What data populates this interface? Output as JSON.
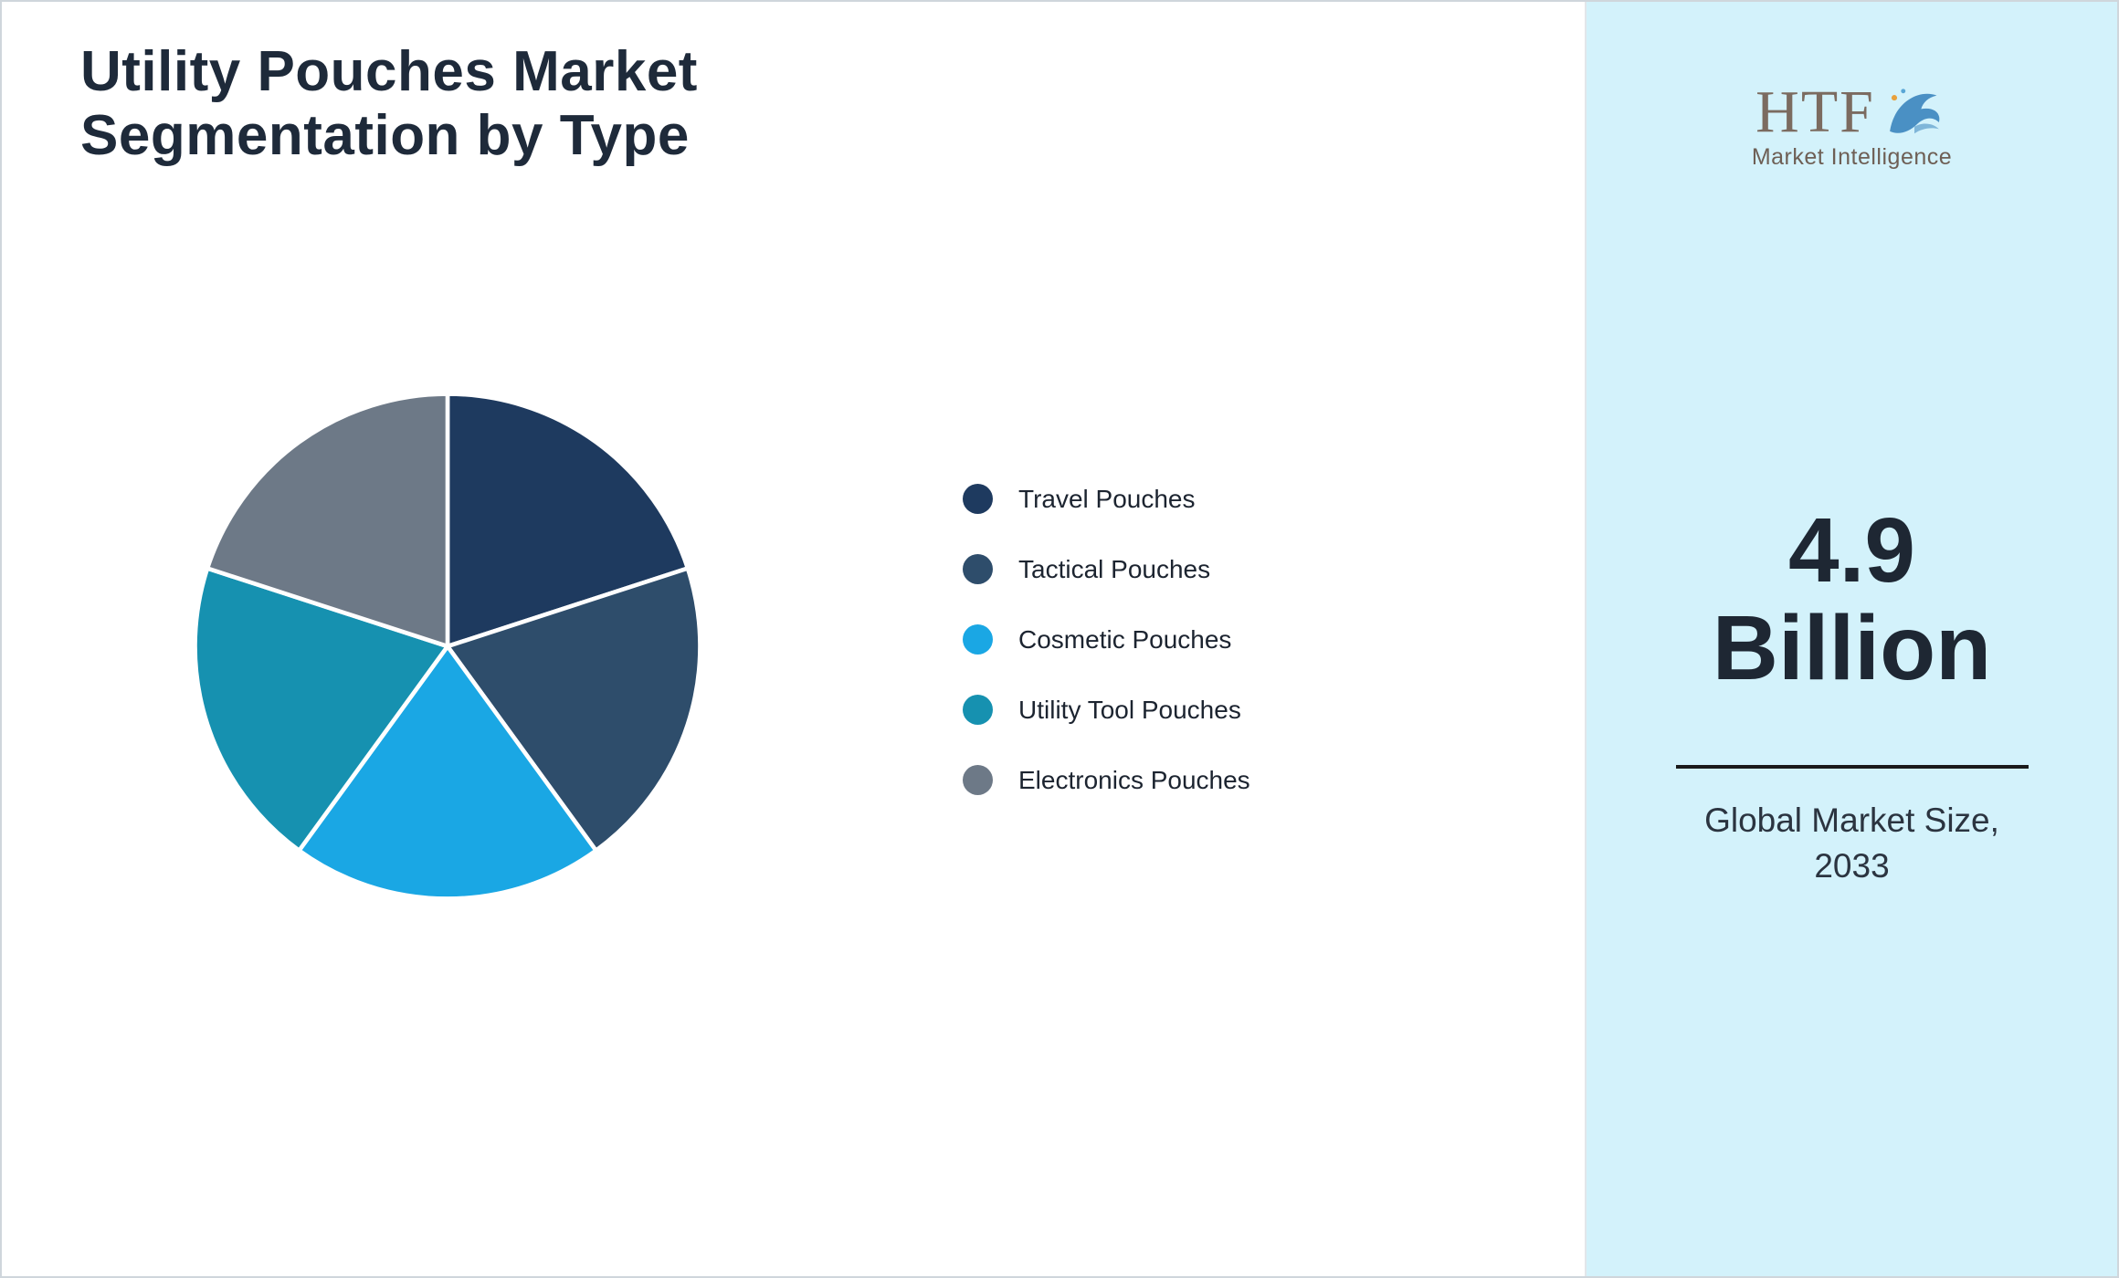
{
  "header": {
    "title_line1": "Utility Pouches Market",
    "title_line2": "Segmentation by Type"
  },
  "chart_data": {
    "type": "pie",
    "title": "Utility Pouches Market Segmentation by Type",
    "labels": [
      "Travel Pouches",
      "Tactical Pouches",
      "Cosmetic Pouches",
      "Utility Tool Pouches",
      "Electronics Pouches"
    ],
    "values": [
      20,
      20,
      20,
      20,
      20
    ],
    "colors": [
      "#1e3a5f",
      "#2e4d6b",
      "#1aa7e4",
      "#1691b0",
      "#6d7987"
    ],
    "start_angle": -90,
    "direction": "clockwise",
    "legend_position": "right",
    "slice_border_color": "#ffffff"
  },
  "sidebar": {
    "background": "#d3f2fb",
    "logo_text": "HTF",
    "logo_subtext": "Market Intelligence",
    "market_size_value": "4.9",
    "market_size_unit": "Billion",
    "caption_line1": "Global Market Size,",
    "caption_line2": "2033"
  }
}
